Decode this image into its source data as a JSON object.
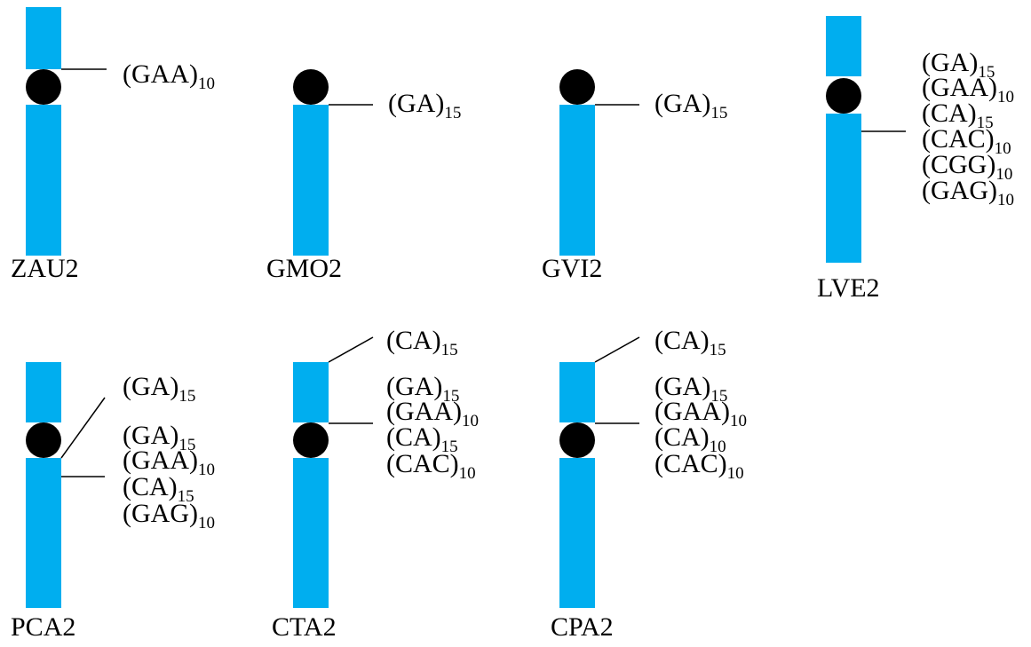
{
  "chromosomes": [
    {
      "label": "ZAU2",
      "annotations": [
        {
          "motif": "(GAA)",
          "count": "10"
        }
      ]
    },
    {
      "label": "GMO2",
      "annotations": [
        {
          "motif": "(GA)",
          "count": "15"
        }
      ]
    },
    {
      "label": "GVI2",
      "annotations": [
        {
          "motif": "(GA)",
          "count": "15"
        }
      ]
    },
    {
      "label": "LVE2",
      "annotations": [
        {
          "motif": "(GA)",
          "count": "15"
        },
        {
          "motif": "(GAA)",
          "count": "10"
        },
        {
          "motif": "(CA)",
          "count": "15"
        },
        {
          "motif": "(CAC)",
          "count": "10"
        },
        {
          "motif": "(CGG)",
          "count": "10"
        },
        {
          "motif": "(GAG)",
          "count": "10"
        }
      ]
    },
    {
      "label": "PCA2",
      "annotations": [
        {
          "motif": "(GA)",
          "count": "15"
        },
        {
          "motif": "(GA)",
          "count": "15"
        },
        {
          "motif": "(GAA)",
          "count": "10"
        },
        {
          "motif": "(CA)",
          "count": "15"
        },
        {
          "motif": "(GAG)",
          "count": "10"
        }
      ]
    },
    {
      "label": "CTA2",
      "annotations": [
        {
          "motif": "(CA)",
          "count": "15"
        },
        {
          "motif": "(GA)",
          "count": "15"
        },
        {
          "motif": "(GAA)",
          "count": "10"
        },
        {
          "motif": "(CA)",
          "count": "15"
        },
        {
          "motif": "(CAC)",
          "count": "10"
        }
      ]
    },
    {
      "label": "CPA2",
      "annotations": [
        {
          "motif": "(CA)",
          "count": "15"
        },
        {
          "motif": "(GA)",
          "count": "15"
        },
        {
          "motif": "(GAA)",
          "count": "10"
        },
        {
          "motif": "(CA)",
          "count": "10"
        },
        {
          "motif": "(CAC)",
          "count": "10"
        }
      ]
    }
  ]
}
